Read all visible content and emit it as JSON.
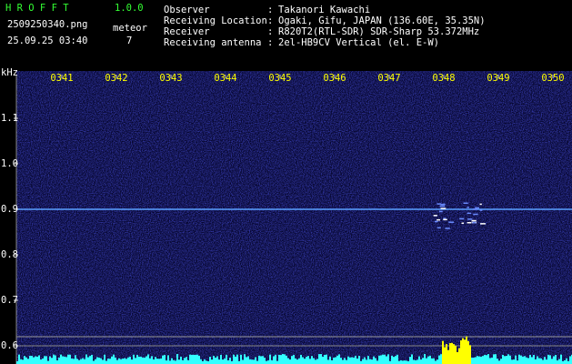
{
  "app": {
    "title": "H R O F F T",
    "version": "1.0.0",
    "filename": "2509250340.png",
    "timestamp": "25.09.25 03:40",
    "meteor_label": "meteor",
    "meteor_count": "7"
  },
  "info": [
    {
      "label": "Observer",
      "value": "Takanori Kawachi"
    },
    {
      "label": "Receiving Location",
      "value": "Ogaki, Gifu, JAPAN (136.60E, 35.35N)"
    },
    {
      "label": "Receiver",
      "value": "R820T2(RTL-SDR) SDR-Sharp 53.372MHz"
    },
    {
      "label": "Receiving antenna",
      "value": "2el-HB9CV Vertical (el. E-W)"
    }
  ],
  "separator": ":",
  "spectrogram": {
    "y_unit": "kHz",
    "x_ticks": [
      "0341",
      "0342",
      "0343",
      "0344",
      "0345",
      "0346",
      "0347",
      "0348",
      "0349",
      "0350"
    ],
    "y_ticks": [
      "1.1",
      "1.0",
      "0.9",
      "0.8",
      "0.7",
      "0.6"
    ]
  }
}
